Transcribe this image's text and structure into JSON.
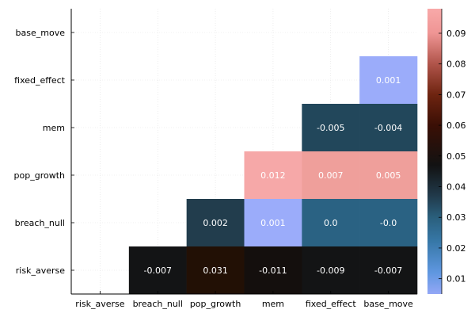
{
  "chart_data": {
    "type": "heatmap",
    "title": "",
    "xlabel": "",
    "ylabel": "",
    "x_categories": [
      "risk_averse",
      "breach_null",
      "pop_growth",
      "mem",
      "fixed_effect",
      "base_move"
    ],
    "y_categories": [
      "base_move",
      "fixed_effect",
      "mem",
      "pop_growth",
      "breach_null",
      "risk_averse"
    ],
    "cells": [
      {
        "x": "base_move",
        "y": "fixed_effect",
        "value": 0.001,
        "label": "0.001"
      },
      {
        "x": "fixed_effect",
        "y": "mem",
        "value": -0.005,
        "label": "-0.005"
      },
      {
        "x": "base_move",
        "y": "mem",
        "value": -0.004,
        "label": "-0.004"
      },
      {
        "x": "mem",
        "y": "pop_growth",
        "value": 0.012,
        "label": "0.012"
      },
      {
        "x": "fixed_effect",
        "y": "pop_growth",
        "value": 0.007,
        "label": "0.007"
      },
      {
        "x": "base_move",
        "y": "pop_growth",
        "value": 0.005,
        "label": "0.005"
      },
      {
        "x": "pop_growth",
        "y": "breach_null",
        "value": 0.002,
        "label": "0.002"
      },
      {
        "x": "mem",
        "y": "breach_null",
        "value": 0.001,
        "label": "0.001"
      },
      {
        "x": "fixed_effect",
        "y": "breach_null",
        "value": 0.0,
        "label": "0.0"
      },
      {
        "x": "base_move",
        "y": "breach_null",
        "value": -0.0,
        "label": "-0.0"
      },
      {
        "x": "breach_null",
        "y": "risk_averse",
        "value": -0.007,
        "label": "-0.007"
      },
      {
        "x": "pop_growth",
        "y": "risk_averse",
        "value": 0.031,
        "label": "0.031"
      },
      {
        "x": "mem",
        "y": "risk_averse",
        "value": -0.011,
        "label": "-0.011"
      },
      {
        "x": "fixed_effect",
        "y": "risk_averse",
        "value": -0.009,
        "label": "-0.009"
      },
      {
        "x": "base_move",
        "y": "risk_averse",
        "value": -0.007,
        "label": "-0.007"
      }
    ],
    "colorbar": {
      "range": [
        0.005,
        0.098
      ],
      "ticks": [
        0.01,
        0.02,
        0.03,
        0.04,
        0.05,
        0.06,
        0.07,
        0.08,
        0.09
      ],
      "tick_labels": [
        "0.01",
        "0.02",
        "0.03",
        "0.04",
        "0.05",
        "0.06",
        "0.07",
        "0.08",
        "0.09"
      ],
      "stops": [
        {
          "value": 0.005,
          "color": "#93a7f6"
        },
        {
          "value": 0.012,
          "color": "#5f97e0"
        },
        {
          "value": 0.022,
          "color": "#3778a8"
        },
        {
          "value": 0.03,
          "color": "#2a5f7c"
        },
        {
          "value": 0.037,
          "color": "#213a4b"
        },
        {
          "value": 0.047,
          "color": "#121212"
        },
        {
          "value": 0.06,
          "color": "#3a0f05"
        },
        {
          "value": 0.07,
          "color": "#6e2410"
        },
        {
          "value": 0.08,
          "color": "#b0544a"
        },
        {
          "value": 0.09,
          "color": "#ef9594"
        },
        {
          "value": 0.098,
          "color": "#f8a9a9"
        }
      ]
    },
    "grid": true,
    "cell_colors": {
      "0.001": "#9bacfa",
      "-0.005": "#22475b",
      "-0.004": "#22475b",
      "0.012": "#f6a8a8",
      "0.007": "#ef9f9b",
      "0.005": "#ef9f9b",
      "0.002": "#223d4d",
      "0.0": "#2a6283",
      "-0.0": "#2a6283",
      "-0.007": "#131415",
      "0.031": "#221005",
      "-0.011": "#140f0d",
      "-0.009": "#131415"
    }
  }
}
